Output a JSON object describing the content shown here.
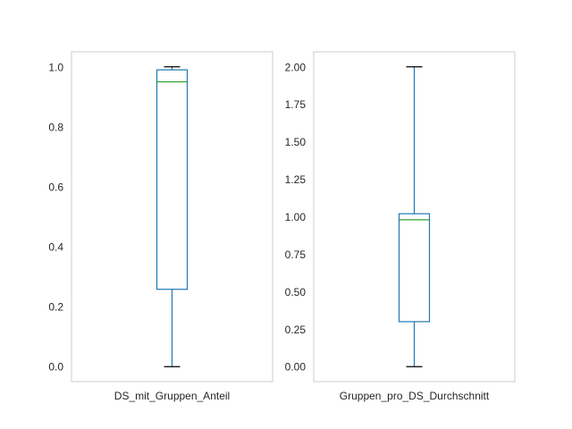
{
  "chart_data": [
    {
      "type": "box",
      "category": "DS_mit_Gruppen_Anteil",
      "ylim": [
        -0.05,
        1.05
      ],
      "yticks": [
        0.0,
        0.2,
        0.4,
        0.6,
        0.8,
        1.0
      ],
      "ytick_labels": [
        "0.0",
        "0.2",
        "0.4",
        "0.6",
        "0.8",
        "1.0"
      ],
      "stats": {
        "whislo": 0.0,
        "q1": 0.258,
        "median": 0.95,
        "q3": 0.99,
        "whishi": 1.0
      },
      "grid": false
    },
    {
      "type": "box",
      "category": "Gruppen_pro_DS_Durchschnitt",
      "ylim": [
        -0.1,
        2.1
      ],
      "yticks": [
        0.0,
        0.25,
        0.5,
        0.75,
        1.0,
        1.25,
        1.5,
        1.75,
        2.0
      ],
      "ytick_labels": [
        "0.00",
        "0.25",
        "0.50",
        "0.75",
        "1.00",
        "1.25",
        "1.50",
        "1.75",
        "2.00"
      ],
      "stats": {
        "whislo": 0.0,
        "q1": 0.3,
        "median": 0.98,
        "q3": 1.02,
        "whishi": 2.0
      },
      "grid": false
    }
  ],
  "colors": {
    "box": "#1f77b4",
    "median": "#2ca02c",
    "whisker_cap": "#000000",
    "frame": "#cccccc"
  }
}
